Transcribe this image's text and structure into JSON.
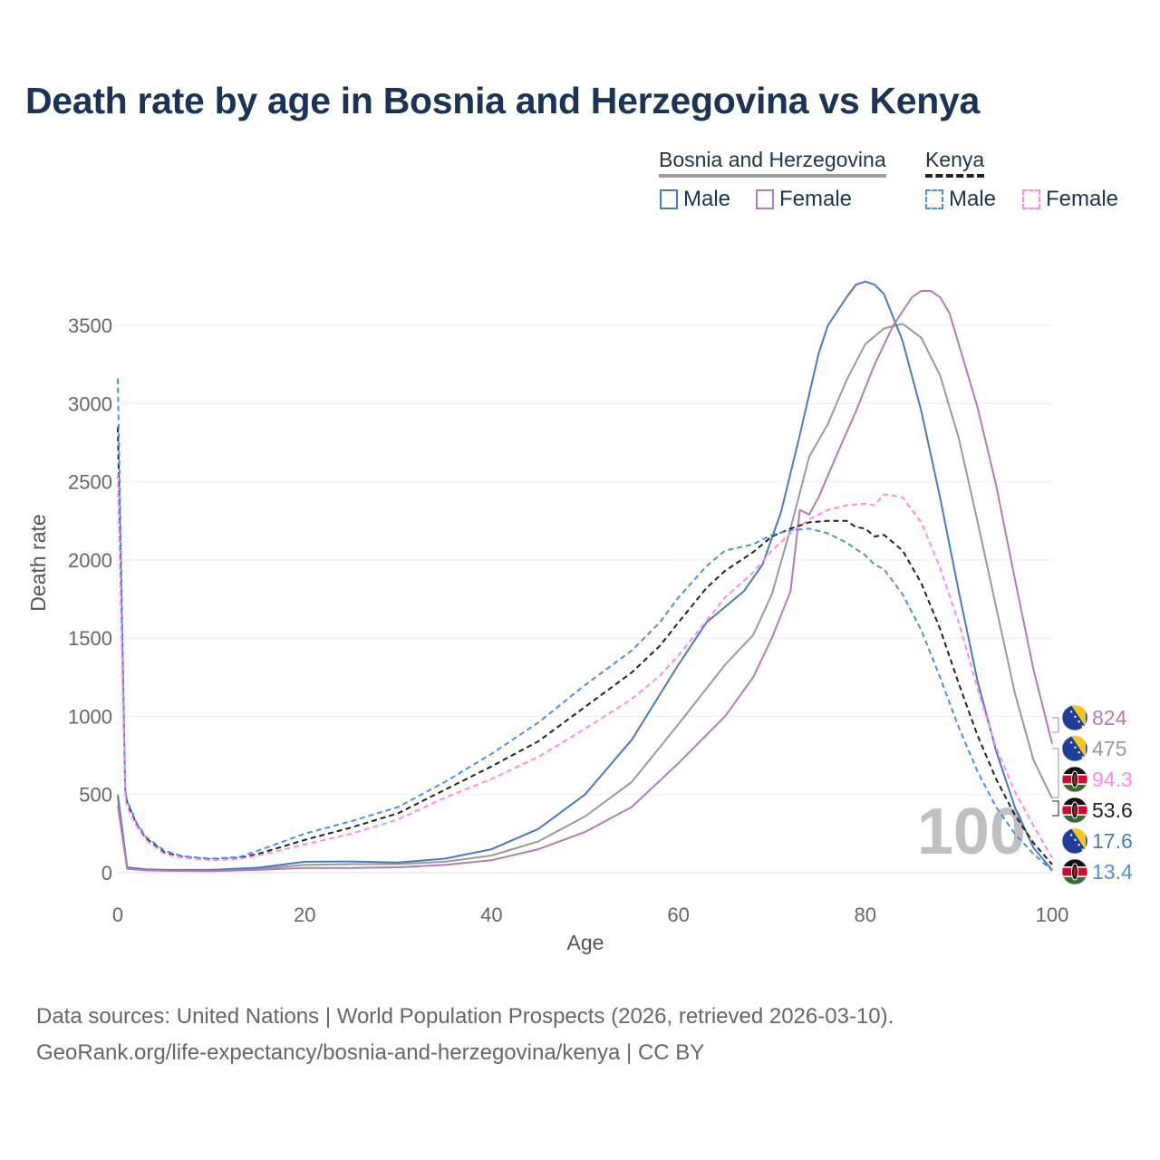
{
  "title": "Death rate by age in Bosnia and Herzegovina vs Kenya",
  "legend": {
    "groups": [
      {
        "name": "Bosnia and Herzegovina",
        "line_style": "solid",
        "underline_color": "#9e9e9e",
        "items": [
          {
            "label": "Male",
            "color": "#4a7bbf"
          },
          {
            "label": "Female",
            "color": "#b57ab8"
          }
        ]
      },
      {
        "name": "Kenya",
        "line_style": "dashed",
        "underline_color": "#222222",
        "items": [
          {
            "label": "Male",
            "color": "#4a90e8"
          },
          {
            "label": "Female",
            "color": "#ff88ee"
          }
        ]
      }
    ]
  },
  "chart_data": {
    "type": "line",
    "xlabel": "Age",
    "ylabel": "Death rate",
    "xlim": [
      0,
      100
    ],
    "ylim": [
      0,
      3800
    ],
    "x_ticks": [
      0,
      20,
      40,
      60,
      80,
      100
    ],
    "y_ticks": [
      0,
      500,
      1000,
      1500,
      2000,
      2500,
      3000,
      3500
    ],
    "grid": true,
    "watermark": "100",
    "series": [
      {
        "name": "Bosnia and Herzegovina Total",
        "color": "#9a9a9a",
        "dash": false,
        "points": [
          [
            0,
            500
          ],
          [
            1,
            30
          ],
          [
            3,
            20
          ],
          [
            5,
            15
          ],
          [
            10,
            15
          ],
          [
            15,
            25
          ],
          [
            20,
            50
          ],
          [
            25,
            55
          ],
          [
            30,
            55
          ],
          [
            35,
            70
          ],
          [
            40,
            110
          ],
          [
            45,
            200
          ],
          [
            50,
            360
          ],
          [
            55,
            580
          ],
          [
            60,
            950
          ],
          [
            65,
            1330
          ],
          [
            68,
            1520
          ],
          [
            70,
            1780
          ],
          [
            72,
            2200
          ],
          [
            74,
            2660
          ],
          [
            76,
            2870
          ],
          [
            78,
            3150
          ],
          [
            80,
            3380
          ],
          [
            82,
            3480
          ],
          [
            84,
            3510
          ],
          [
            86,
            3420
          ],
          [
            88,
            3180
          ],
          [
            90,
            2780
          ],
          [
            92,
            2250
          ],
          [
            94,
            1700
          ],
          [
            96,
            1150
          ],
          [
            98,
            720
          ],
          [
            100,
            475
          ]
        ]
      },
      {
        "name": "Bosnia and Herzegovina Male",
        "color": "#4a7bbf",
        "dash": false,
        "points": [
          [
            0,
            490
          ],
          [
            1,
            35
          ],
          [
            3,
            22
          ],
          [
            5,
            18
          ],
          [
            10,
            18
          ],
          [
            15,
            32
          ],
          [
            20,
            70
          ],
          [
            25,
            72
          ],
          [
            30,
            65
          ],
          [
            35,
            90
          ],
          [
            40,
            150
          ],
          [
            45,
            280
          ],
          [
            50,
            500
          ],
          [
            55,
            850
          ],
          [
            60,
            1330
          ],
          [
            63,
            1600
          ],
          [
            65,
            1700
          ],
          [
            67,
            1800
          ],
          [
            69,
            1970
          ],
          [
            71,
            2310
          ],
          [
            73,
            2800
          ],
          [
            75,
            3320
          ],
          [
            76,
            3500
          ],
          [
            78,
            3680
          ],
          [
            79,
            3760
          ],
          [
            80,
            3780
          ],
          [
            81,
            3760
          ],
          [
            82,
            3700
          ],
          [
            84,
            3400
          ],
          [
            86,
            2950
          ],
          [
            88,
            2400
          ],
          [
            90,
            1800
          ],
          [
            92,
            1230
          ],
          [
            94,
            780
          ],
          [
            96,
            420
          ],
          [
            98,
            160
          ],
          [
            100,
            17.6
          ]
        ]
      },
      {
        "name": "Bosnia and Herzegovina Female",
        "color": "#b57ab8",
        "dash": false,
        "points": [
          [
            0,
            430
          ],
          [
            1,
            25
          ],
          [
            3,
            15
          ],
          [
            5,
            12
          ],
          [
            10,
            10
          ],
          [
            15,
            18
          ],
          [
            20,
            30
          ],
          [
            25,
            30
          ],
          [
            30,
            35
          ],
          [
            35,
            50
          ],
          [
            40,
            80
          ],
          [
            45,
            150
          ],
          [
            50,
            260
          ],
          [
            55,
            420
          ],
          [
            60,
            700
          ],
          [
            65,
            1000
          ],
          [
            68,
            1250
          ],
          [
            70,
            1500
          ],
          [
            72,
            1800
          ],
          [
            73,
            2320
          ],
          [
            74,
            2290
          ],
          [
            75,
            2400
          ],
          [
            77,
            2680
          ],
          [
            79,
            2950
          ],
          [
            81,
            3250
          ],
          [
            83,
            3500
          ],
          [
            85,
            3680
          ],
          [
            86,
            3720
          ],
          [
            87,
            3720
          ],
          [
            88,
            3680
          ],
          [
            89,
            3580
          ],
          [
            90,
            3380
          ],
          [
            92,
            2980
          ],
          [
            94,
            2480
          ],
          [
            96,
            1880
          ],
          [
            98,
            1300
          ],
          [
            100,
            824
          ]
        ]
      },
      {
        "name": "Kenya Total",
        "color": "#222222",
        "dash": true,
        "points": [
          [
            0,
            2850
          ],
          [
            0.8,
            520
          ],
          [
            1,
            450
          ],
          [
            2,
            310
          ],
          [
            3,
            220
          ],
          [
            5,
            130
          ],
          [
            7,
            100
          ],
          [
            10,
            85
          ],
          [
            13,
            95
          ],
          [
            15,
            120
          ],
          [
            20,
            210
          ],
          [
            25,
            290
          ],
          [
            30,
            380
          ],
          [
            35,
            530
          ],
          [
            40,
            680
          ],
          [
            45,
            840
          ],
          [
            50,
            1060
          ],
          [
            55,
            1280
          ],
          [
            58,
            1450
          ],
          [
            60,
            1600
          ],
          [
            63,
            1820
          ],
          [
            65,
            1930
          ],
          [
            68,
            2050
          ],
          [
            70,
            2150
          ],
          [
            72,
            2200
          ],
          [
            74,
            2240
          ],
          [
            76,
            2250
          ],
          [
            78,
            2250
          ],
          [
            79,
            2210
          ],
          [
            80,
            2200
          ],
          [
            81,
            2150
          ],
          [
            82,
            2160
          ],
          [
            84,
            2060
          ],
          [
            86,
            1850
          ],
          [
            88,
            1560
          ],
          [
            90,
            1210
          ],
          [
            92,
            880
          ],
          [
            94,
            600
          ],
          [
            96,
            370
          ],
          [
            98,
            190
          ],
          [
            100,
            53.6
          ]
        ]
      },
      {
        "name": "Kenya Male",
        "color": "#4a90e8",
        "dash": true,
        "points": [
          [
            0,
            3160
          ],
          [
            0.8,
            520
          ],
          [
            1,
            460
          ],
          [
            2,
            320
          ],
          [
            3,
            230
          ],
          [
            5,
            140
          ],
          [
            7,
            105
          ],
          [
            10,
            90
          ],
          [
            13,
            100
          ],
          [
            15,
            140
          ],
          [
            20,
            250
          ],
          [
            25,
            330
          ],
          [
            30,
            420
          ],
          [
            35,
            580
          ],
          [
            40,
            760
          ],
          [
            45,
            960
          ],
          [
            50,
            1200
          ],
          [
            55,
            1420
          ],
          [
            58,
            1600
          ],
          [
            60,
            1760
          ],
          [
            63,
            1960
          ],
          [
            65,
            2060
          ],
          [
            68,
            2100
          ],
          [
            70,
            2160
          ],
          [
            72,
            2190
          ],
          [
            74,
            2200
          ],
          [
            76,
            2170
          ],
          [
            78,
            2110
          ],
          [
            80,
            2030
          ],
          [
            81,
            1970
          ],
          [
            82,
            1940
          ],
          [
            84,
            1780
          ],
          [
            86,
            1550
          ],
          [
            88,
            1250
          ],
          [
            90,
            930
          ],
          [
            92,
            650
          ],
          [
            94,
            420
          ],
          [
            96,
            250
          ],
          [
            98,
            120
          ],
          [
            100,
            13.4
          ]
        ]
      },
      {
        "name": "Kenya Female",
        "color": "#ff88ee",
        "dash": true,
        "points": [
          [
            0,
            2550
          ],
          [
            0.8,
            480
          ],
          [
            1,
            420
          ],
          [
            2,
            300
          ],
          [
            3,
            210
          ],
          [
            5,
            120
          ],
          [
            7,
            95
          ],
          [
            10,
            80
          ],
          [
            13,
            88
          ],
          [
            15,
            110
          ],
          [
            20,
            180
          ],
          [
            25,
            250
          ],
          [
            30,
            340
          ],
          [
            35,
            480
          ],
          [
            40,
            600
          ],
          [
            45,
            740
          ],
          [
            50,
            920
          ],
          [
            55,
            1110
          ],
          [
            58,
            1260
          ],
          [
            60,
            1390
          ],
          [
            63,
            1610
          ],
          [
            65,
            1760
          ],
          [
            68,
            1920
          ],
          [
            70,
            2060
          ],
          [
            72,
            2170
          ],
          [
            74,
            2260
          ],
          [
            76,
            2320
          ],
          [
            78,
            2350
          ],
          [
            80,
            2360
          ],
          [
            81,
            2350
          ],
          [
            82,
            2420
          ],
          [
            84,
            2400
          ],
          [
            86,
            2240
          ],
          [
            88,
            1950
          ],
          [
            90,
            1600
          ],
          [
            92,
            1180
          ],
          [
            94,
            800
          ],
          [
            96,
            520
          ],
          [
            98,
            300
          ],
          [
            100,
            94.3
          ]
        ]
      }
    ],
    "end_labels": [
      {
        "value": "824",
        "country": "Bosnia and Herzegovina",
        "color": "#b57ab8"
      },
      {
        "value": "475",
        "country": "Bosnia and Herzegovina",
        "color": "#9a9a9a"
      },
      {
        "value": "94.3",
        "country": "Kenya",
        "color": "#ff88ee"
      },
      {
        "value": "53.6",
        "country": "Kenya",
        "color": "#222222"
      },
      {
        "value": "17.6",
        "country": "Bosnia and Herzegovina",
        "color": "#4a7bbf"
      },
      {
        "value": "13.4",
        "country": "Kenya",
        "color": "#4a90e8"
      }
    ]
  },
  "source": {
    "line1": "Data sources: United Nations | World Population Prospects (2026, retrieved 2026-03-10).",
    "line2": "GeoRank.org/life-expectancy/bosnia-and-herzegovina/kenya | CC BY"
  }
}
